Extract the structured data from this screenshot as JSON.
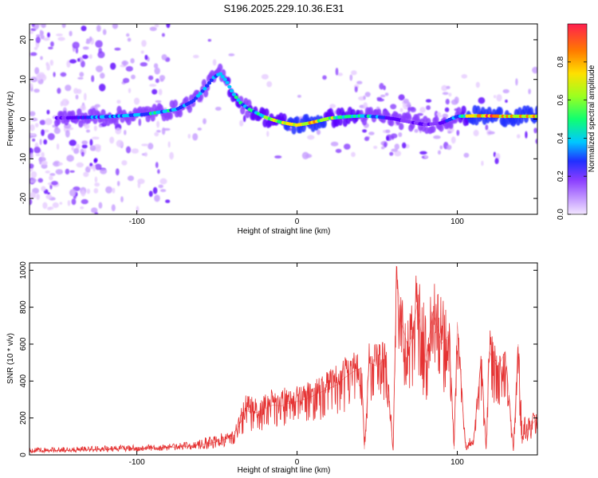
{
  "title": "S196.2025.229.10.36.E31",
  "colors": {
    "signal": "#e53333",
    "axis": "#000000",
    "colormap": [
      "#e6ccff",
      "#c59cff",
      "#8a3dff",
      "#5a00ff",
      "#2030ff",
      "#00c8ff",
      "#10ff70",
      "#9bff20",
      "#ffe000",
      "#ff7a00",
      "#ff1f4f"
    ]
  },
  "chart_data": [
    {
      "type": "heatmap",
      "title": "S196.2025.229.10.36.E31",
      "xlabel": "Height of straight line (km)",
      "ylabel": "Frequency (Hz)",
      "xlim": [
        -167,
        150
      ],
      "ylim": [
        -24,
        24
      ],
      "xticks": [
        -100,
        0,
        100
      ],
      "xtick_labels": [
        "-100",
        "0",
        "100"
      ],
      "yticks": [
        20,
        10,
        0,
        -10,
        -20
      ],
      "ytick_labels": [
        "20",
        "10",
        "0",
        "-10",
        "-20"
      ],
      "colorbar": {
        "label": "Normalized spectral amplitude",
        "range": [
          0,
          1
        ],
        "ticks": [
          0.0,
          0.2,
          0.4,
          0.6,
          0.8
        ],
        "tick_labels": [
          "0.0",
          "0.2",
          "0.4",
          "0.6",
          "0.8"
        ]
      },
      "ridge": {
        "x": [
          -145,
          -125,
          -110,
          -95,
          -85,
          -75,
          -65,
          -58,
          -52,
          -48,
          -44,
          -40,
          -35,
          -30,
          -25,
          -20,
          -15,
          -10,
          -5,
          0,
          5,
          10,
          15,
          20,
          30,
          40,
          50,
          60,
          70,
          80,
          90,
          100,
          110,
          120,
          130,
          140,
          148
        ],
        "y": [
          0.3,
          0.5,
          0.8,
          1.2,
          1.8,
          2.5,
          4.5,
          7.5,
          10.5,
          11.5,
          9.5,
          6.5,
          4,
          2.5,
          1.5,
          0.5,
          -0.2,
          -0.8,
          -1.2,
          -1.5,
          -1.2,
          -0.8,
          -0.3,
          0.2,
          0.6,
          0.8,
          0.6,
          0.1,
          -0.7,
          -1.4,
          -1.0,
          0.7,
          0.8,
          0.8,
          0.7,
          0.7,
          0.7
        ],
        "amplitude": [
          0.3,
          0.45,
          0.5,
          0.5,
          0.55,
          0.5,
          0.45,
          0.45,
          0.5,
          0.55,
          0.55,
          0.6,
          0.55,
          0.55,
          0.6,
          0.65,
          0.7,
          0.75,
          0.8,
          0.85,
          0.85,
          0.85,
          0.8,
          0.75,
          0.65,
          0.55,
          0.45,
          0.3,
          0.25,
          0.25,
          0.3,
          0.5,
          0.95,
          0.95,
          0.9,
          0.9,
          0.9
        ]
      }
    },
    {
      "type": "line",
      "xlabel": "Height of straight line (km)",
      "ylabel": "SNR (10 * v/v)",
      "xlim": [
        -167,
        150
      ],
      "ylim": [
        0,
        1040
      ],
      "xticks": [
        -100,
        0,
        100
      ],
      "xtick_labels": [
        "-100",
        "0",
        "100"
      ],
      "yticks": [
        0,
        200,
        400,
        600,
        800,
        1000
      ],
      "ytick_labels": [
        "0",
        "200",
        "400",
        "600",
        "800",
        "1000"
      ],
      "series": [
        {
          "name": "SNR",
          "x": [
            -167,
            -140,
            -120,
            -100,
            -80,
            -70,
            -60,
            -50,
            -45,
            -40,
            -35,
            -32,
            -28,
            -25,
            -20,
            -15,
            -10,
            -5,
            0,
            5,
            10,
            15,
            20,
            25,
            30,
            35,
            40,
            42,
            45,
            50,
            55,
            60,
            62,
            65,
            70,
            75,
            80,
            85,
            90,
            95,
            98,
            100,
            105,
            110,
            115,
            118,
            120,
            125,
            130,
            135,
            138,
            140,
            145,
            150
          ],
          "values": [
            20,
            25,
            30,
            35,
            40,
            45,
            55,
            70,
            85,
            90,
            180,
            240,
            230,
            230,
            250,
            270,
            265,
            280,
            290,
            300,
            320,
            340,
            360,
            380,
            420,
            450,
            470,
            30,
            500,
            480,
            520,
            30,
            1000,
            720,
            560,
            820,
            500,
            780,
            600,
            650,
            30,
            720,
            40,
            60,
            520,
            30,
            560,
            470,
            560,
            30,
            600,
            90,
            150,
            200
          ],
          "envelope": [
            40,
            45,
            50,
            55,
            60,
            70,
            90,
            110,
            130,
            130,
            260,
            330,
            320,
            320,
            340,
            360,
            360,
            370,
            380,
            390,
            410,
            430,
            460,
            490,
            530,
            560,
            600,
            60,
            620,
            620,
            650,
            70,
            1040,
            900,
            820,
            1000,
            800,
            980,
            880,
            750,
            60,
            780,
            80,
            100,
            560,
            60,
            700,
            560,
            560,
            60,
            640,
            300,
            240,
            220
          ]
        }
      ]
    }
  ]
}
